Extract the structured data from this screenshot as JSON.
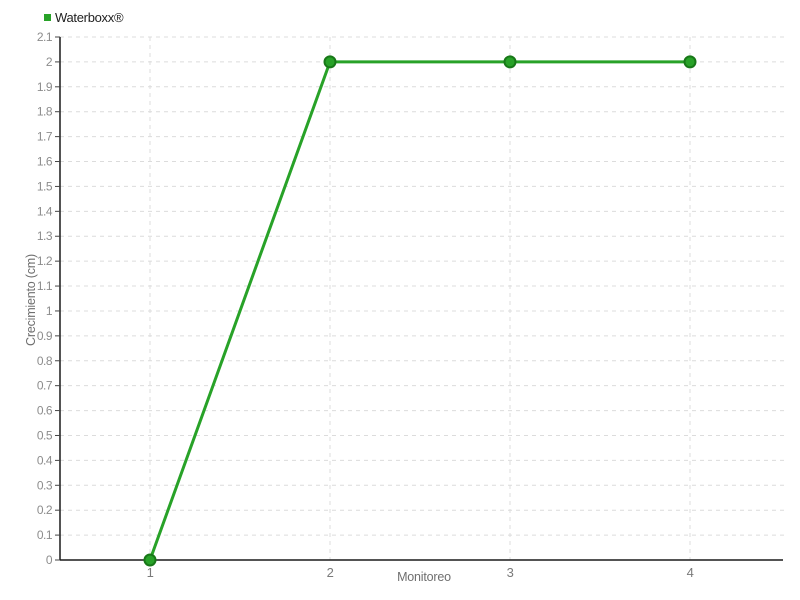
{
  "legend": {
    "items": [
      {
        "label": "Waterboxx®",
        "color": "#28a228"
      }
    ]
  },
  "axes": {
    "x_title": "Monitoreo",
    "y_title": "Crecimiento (cm)"
  },
  "chart_data": {
    "type": "line",
    "title": "",
    "xlabel": "Monitoreo",
    "ylabel": "Crecimiento (cm)",
    "x": [
      1,
      2,
      3,
      4
    ],
    "xtick_labels": [
      "1",
      "2",
      "3",
      "4"
    ],
    "yticks": [
      0,
      0.1,
      0.2,
      0.3,
      0.4,
      0.5,
      0.6,
      0.7,
      0.8,
      0.9,
      1,
      1.1,
      1.2,
      1.3,
      1.4,
      1.5,
      1.6,
      1.7,
      1.8,
      1.9,
      2,
      2.1
    ],
    "ylim": [
      0,
      2.1
    ],
    "grid": "dashed",
    "legend_position": "top-left",
    "series": [
      {
        "name": "Waterboxx®",
        "values": [
          0,
          2,
          2,
          2
        ],
        "color": "#28a228",
        "marker_fill": "#28a228",
        "marker_border": "#187818"
      }
    ],
    "colors": {
      "grid": "#dcdcdc",
      "axis": "#1a1a1a",
      "y_tick_label": "#8c8c8c",
      "x_tick_label": "#7a7a7a",
      "axis_title": "#6f6f6f"
    }
  }
}
